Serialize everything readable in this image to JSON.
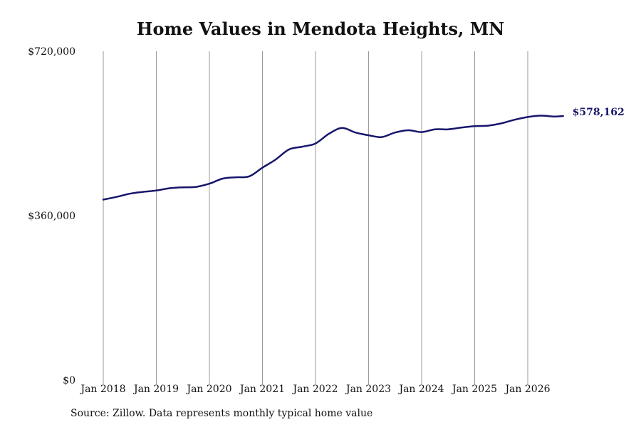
{
  "chart_data": {
    "type": "line",
    "title": "Home Values in Mendota Heights, MN",
    "source": "Source: Zillow. Data represents monthly typical home value",
    "ylim": [
      0,
      720000
    ],
    "y_ticks": [
      {
        "value": 0,
        "label": "$0"
      },
      {
        "value": 360000,
        "label": "$360,000"
      },
      {
        "value": 720000,
        "label": "$720,000"
      }
    ],
    "x_ticks": [
      {
        "value": "2018-01",
        "label": "Jan 2018"
      },
      {
        "value": "2019-01",
        "label": "Jan 2019"
      },
      {
        "value": "2020-01",
        "label": "Jan 2020"
      },
      {
        "value": "2021-01",
        "label": "Jan 2021"
      },
      {
        "value": "2022-01",
        "label": "Jan 2022"
      },
      {
        "value": "2023-01",
        "label": "Jan 2023"
      },
      {
        "value": "2024-01",
        "label": "Jan 2024"
      },
      {
        "value": "2025-01",
        "label": "Jan 2025"
      },
      {
        "value": "2026-01",
        "label": "Jan 2026"
      }
    ],
    "grid": {
      "vertical": true,
      "horizontal": false
    },
    "series": [
      {
        "color": "#16166b",
        "end_label": "$578,162",
        "points": [
          {
            "x": "2018-01",
            "y": 395000
          },
          {
            "x": "2018-04",
            "y": 401000
          },
          {
            "x": "2018-07",
            "y": 408000
          },
          {
            "x": "2018-10",
            "y": 412000
          },
          {
            "x": "2019-01",
            "y": 415000
          },
          {
            "x": "2019-04",
            "y": 420000
          },
          {
            "x": "2019-07",
            "y": 422000
          },
          {
            "x": "2019-10",
            "y": 423000
          },
          {
            "x": "2020-01",
            "y": 430000
          },
          {
            "x": "2020-04",
            "y": 441000
          },
          {
            "x": "2020-07",
            "y": 444000
          },
          {
            "x": "2020-10",
            "y": 446000
          },
          {
            "x": "2021-01",
            "y": 465000
          },
          {
            "x": "2021-04",
            "y": 483000
          },
          {
            "x": "2021-07",
            "y": 505000
          },
          {
            "x": "2021-10",
            "y": 511000
          },
          {
            "x": "2022-01",
            "y": 518000
          },
          {
            "x": "2022-04",
            "y": 539000
          },
          {
            "x": "2022-07",
            "y": 552000
          },
          {
            "x": "2022-10",
            "y": 542000
          },
          {
            "x": "2023-01",
            "y": 536000
          },
          {
            "x": "2023-04",
            "y": 532000
          },
          {
            "x": "2023-07",
            "y": 542000
          },
          {
            "x": "2023-10",
            "y": 547000
          },
          {
            "x": "2024-01",
            "y": 543000
          },
          {
            "x": "2024-04",
            "y": 549000
          },
          {
            "x": "2024-07",
            "y": 549000
          },
          {
            "x": "2024-10",
            "y": 553000
          },
          {
            "x": "2025-01",
            "y": 556000
          },
          {
            "x": "2025-04",
            "y": 557000
          },
          {
            "x": "2025-07",
            "y": 562000
          },
          {
            "x": "2025-10",
            "y": 570000
          },
          {
            "x": "2026-01",
            "y": 576000
          },
          {
            "x": "2026-04",
            "y": 579000
          },
          {
            "x": "2026-07",
            "y": 577000
          },
          {
            "x": "2026-09",
            "y": 578162
          }
        ]
      }
    ]
  }
}
